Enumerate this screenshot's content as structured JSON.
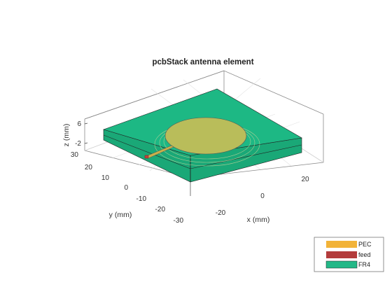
{
  "figure": {
    "title": "pcbStack antenna element",
    "xlabel": "x (mm)",
    "ylabel": "y (mm)",
    "zlabel": "z (mm)",
    "x_ticks": [
      "-20",
      "0",
      "20"
    ],
    "y_ticks": [
      "30",
      "20",
      "10",
      "0",
      "-10",
      "-20",
      "-30"
    ],
    "z_ticks": [
      "6",
      "-2"
    ]
  },
  "legend": {
    "placement": "bottom-right",
    "items": [
      {
        "label": "PEC",
        "color": "#f2b338"
      },
      {
        "label": "feed",
        "color": "#b33c3c"
      },
      {
        "label": "FR4",
        "color": "#23b887"
      }
    ]
  },
  "colors": {
    "substrate_top": "#1db884",
    "substrate_side": "#1aa877",
    "patch": "#b9bd5a",
    "feed_line": "#c8b14a",
    "feed_point": "#c0413d"
  }
}
